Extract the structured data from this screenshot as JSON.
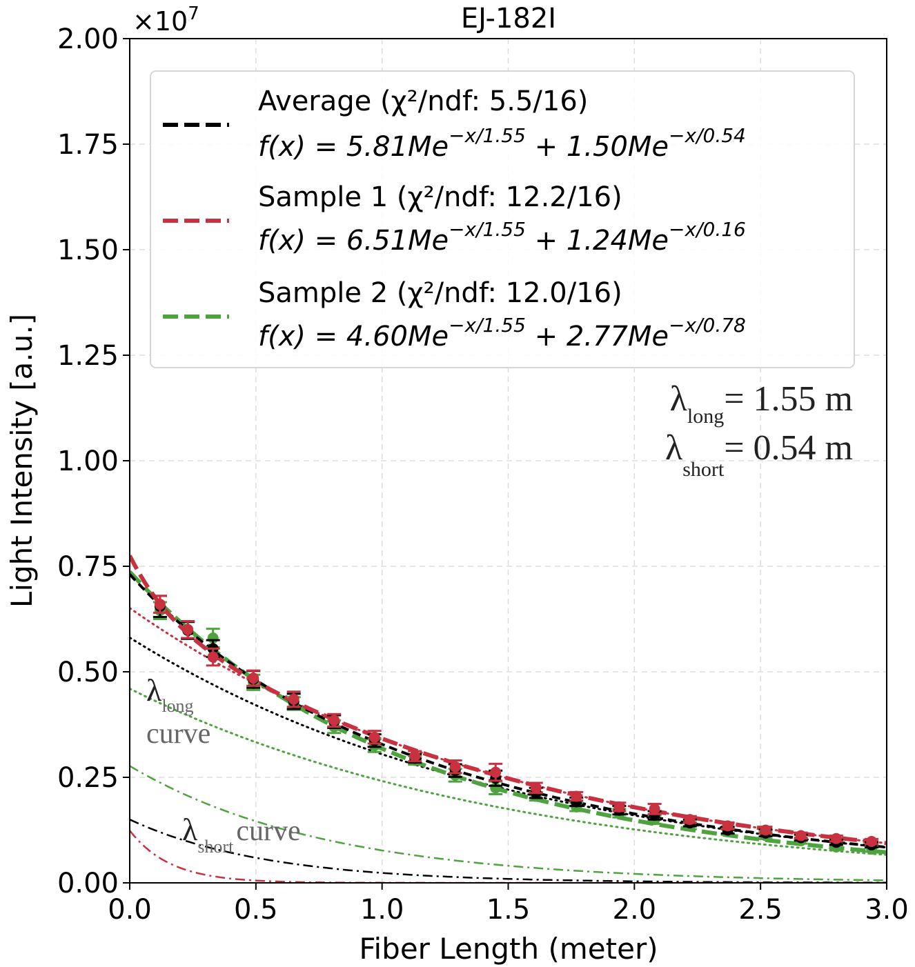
{
  "chart_data": {
    "type": "line",
    "title": "EJ-182I",
    "xlabel": "Fiber Length (meter)",
    "ylabel": "Light Intensity [a.u.]",
    "y_multiplier_label": "×10",
    "y_multiplier_exp": "7",
    "xlim": [
      0.0,
      3.0
    ],
    "ylim": [
      0.0,
      2.0
    ],
    "x_ticks": [
      0.0,
      0.5,
      1.0,
      1.5,
      2.0,
      2.5,
      3.0
    ],
    "x_tick_labels": [
      "0.0",
      "0.5",
      "1.0",
      "1.5",
      "2.0",
      "2.5",
      "3.0"
    ],
    "y_ticks": [
      0.0,
      0.25,
      0.5,
      0.75,
      1.0,
      1.25,
      1.5,
      1.75,
      2.0
    ],
    "y_tick_labels": [
      "0.00",
      "0.25",
      "0.50",
      "0.75",
      "1.00",
      "1.25",
      "1.50",
      "1.75",
      "2.00"
    ],
    "grid": true,
    "legend_position": "top",
    "series": [
      {
        "name": "Average",
        "color": "#000000",
        "chi2": "Average (χ²/ndf: 5.5/16)",
        "formula": {
          "prefix": "f(x) = 5.81Me",
          "exp1": "−x/1.55",
          "mid": " + 1.50Me",
          "exp2": "−x/0.54"
        },
        "A1": 0.581,
        "L1": 1.55,
        "A2": 0.15,
        "L2": 0.54,
        "x": [
          0.12,
          0.23,
          0.33,
          0.49,
          0.65,
          0.81,
          0.97,
          1.13,
          1.29,
          1.45,
          1.61,
          1.77,
          1.94,
          2.08,
          2.22,
          2.37,
          2.52,
          2.66,
          2.8,
          2.94
        ],
        "y": [
          0.655,
          0.598,
          0.555,
          0.482,
          0.43,
          0.382,
          0.337,
          0.295,
          0.266,
          0.248,
          0.213,
          0.192,
          0.172,
          0.16,
          0.142,
          0.125,
          0.118,
          0.107,
          0.096,
          0.09
        ],
        "err": [
          0.025,
          0.02,
          0.02,
          0.02,
          0.018,
          0.015,
          0.015,
          0.01,
          0.015,
          0.018,
          0.012,
          0.01,
          0.01,
          0.01,
          0.008,
          0.008,
          0.008,
          0.007,
          0.006,
          0.006
        ]
      },
      {
        "name": "Sample 1",
        "color": "#c8313f",
        "chi2": "Sample 1 (χ²/ndf: 12.2/16)",
        "formula": {
          "prefix": "f(x) = 6.51Me",
          "exp1": "−x/1.55",
          "mid": " + 1.24Me",
          "exp2": "−x/0.16"
        },
        "A1": 0.651,
        "L1": 1.55,
        "A2": 0.124,
        "L2": 0.16,
        "x": [
          0.12,
          0.23,
          0.33,
          0.49,
          0.65,
          0.81,
          0.97,
          1.13,
          1.29,
          1.45,
          1.61,
          1.77,
          1.94,
          2.08,
          2.22,
          2.37,
          2.52,
          2.66,
          2.8,
          2.94
        ],
        "y": [
          0.66,
          0.6,
          0.535,
          0.485,
          0.435,
          0.385,
          0.345,
          0.3,
          0.275,
          0.262,
          0.225,
          0.205,
          0.18,
          0.175,
          0.15,
          0.135,
          0.125,
          0.112,
          0.105,
          0.098
        ],
        "err": [
          0.02,
          0.02,
          0.02,
          0.018,
          0.018,
          0.015,
          0.015,
          0.012,
          0.015,
          0.02,
          0.012,
          0.01,
          0.01,
          0.012,
          0.008,
          0.008,
          0.008,
          0.007,
          0.007,
          0.006
        ]
      },
      {
        "name": "Sample 2",
        "color": "#4ea33e",
        "chi2": "Sample 2 (χ²/ndf: 12.0/16)",
        "formula": {
          "prefix": "f(x) = 4.60Me",
          "exp1": "−x/1.55",
          "mid": " + 2.77Me",
          "exp2": "−x/0.78"
        },
        "A1": 0.46,
        "L1": 1.55,
        "A2": 0.277,
        "L2": 0.78,
        "x": [
          0.12,
          0.23,
          0.33,
          0.49,
          0.65,
          0.81,
          0.97,
          1.13,
          1.29,
          1.45,
          1.61,
          1.77,
          1.94,
          2.08,
          2.22,
          2.37,
          2.52,
          2.66,
          2.8,
          2.94
        ],
        "y": [
          0.645,
          0.6,
          0.58,
          0.475,
          0.425,
          0.37,
          0.325,
          0.29,
          0.255,
          0.225,
          0.205,
          0.18,
          0.165,
          0.15,
          0.135,
          0.122,
          0.112,
          0.1,
          0.085,
          0.08
        ],
        "err": [
          0.02,
          0.02,
          0.022,
          0.018,
          0.015,
          0.015,
          0.015,
          0.01,
          0.015,
          0.015,
          0.01,
          0.01,
          0.01,
          0.01,
          0.008,
          0.008,
          0.008,
          0.007,
          0.006,
          0.006
        ]
      }
    ],
    "annotations": {
      "lambda_long_value": "= 1.55 m",
      "lambda_short_value": "= 0.54 m",
      "lambda_symbol": "λ",
      "long_sub": "long",
      "short_sub": "short",
      "curve_word": "curve"
    }
  }
}
